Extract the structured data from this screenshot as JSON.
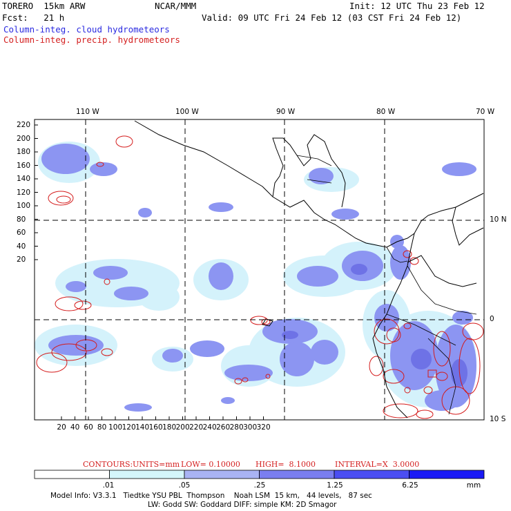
{
  "header": {
    "model": "TORERO  15km ARW",
    "org": "NCAR/MMM",
    "init": "Init: 12 UTC Thu 23 Feb 12",
    "fcst": "Fcst:   21 h",
    "valid": "Valid: 09 UTC Fri 24 Feb 12 (03 CST Fri 24 Feb 12)",
    "legend_blue": "Column-integ. cloud hydrometeors",
    "legend_red": "Column-integ. precip. hydrometeors"
  },
  "map": {
    "lon_labels": [
      "110 W",
      "100 W",
      "90 W",
      "80 W",
      "70 W"
    ],
    "lat_labels": [
      "10 N",
      "0",
      "10 S"
    ],
    "y_ticks": [
      "220",
      "200",
      "180",
      "160",
      "140",
      "120",
      "100",
      "80",
      "60",
      "40",
      "20"
    ],
    "x_ticks": [
      "20",
      "40",
      "60",
      "80",
      "100",
      "120",
      "140",
      "160",
      "180",
      "200",
      "220",
      "240",
      "260",
      "280",
      "300",
      "320"
    ],
    "fill_color": "#8c95f2",
    "light_fill_color": "#d4f2fb",
    "contour_color": "#d41a1a"
  },
  "contours_info": {
    "contours": "CONTOURS:",
    "units": "UNITS=mm",
    "low": "LOW= 0.10000",
    "high": "HIGH=  8.1000",
    "interval": "INTERVAL=X  3.0000"
  },
  "colorbar": {
    "labels": [
      ".01",
      ".05",
      ".25",
      "1.25",
      "6.25"
    ],
    "unit": "mm",
    "colors": [
      "#ffffff",
      "#d4f6fb",
      "#a9b3f4",
      "#7a7ef0",
      "#4b4ef2",
      "#1a1af5"
    ]
  },
  "footer": {
    "line1": "Model Info: V3.3.1   Tiedtke YSU PBL  Thompson    Noah LSM  15 km,   44 levels,   87 sec",
    "line2": "LW: Godd SW: Goddard DIFF: simple KM: 2D Smagor"
  }
}
